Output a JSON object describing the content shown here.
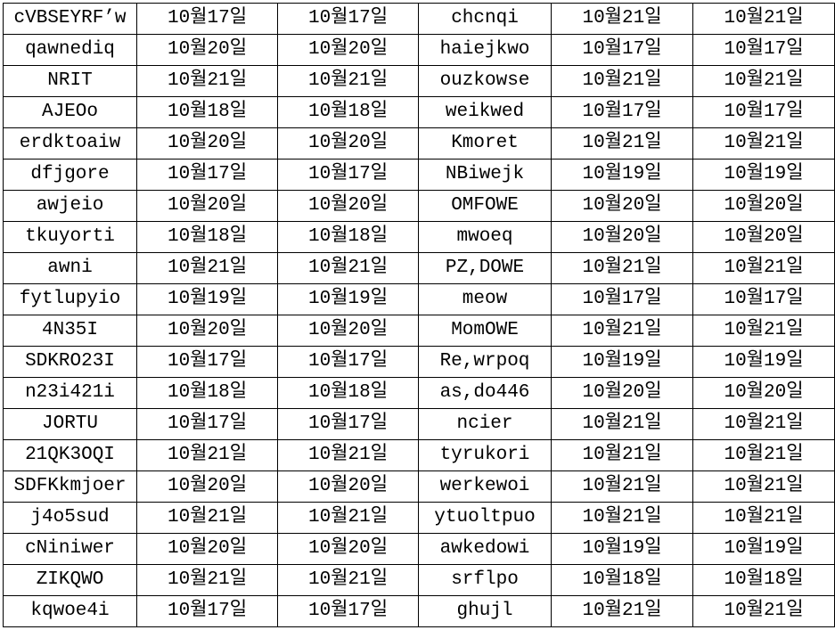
{
  "rows": [
    [
      "cVBSEYRF’w",
      "10월17일",
      "10월17일",
      "chcnqi",
      "10월21일",
      "10월21일"
    ],
    [
      "qawnediq",
      "10월20일",
      "10월20일",
      "haiejkwo",
      "10월17일",
      "10월17일"
    ],
    [
      "NRIT",
      "10월21일",
      "10월21일",
      "ouzkowse",
      "10월21일",
      "10월21일"
    ],
    [
      "AJEOo",
      "10월18일",
      "10월18일",
      "weikwed",
      "10월17일",
      "10월17일"
    ],
    [
      "erdktoaiw",
      "10월20일",
      "10월20일",
      "Kmoret",
      "10월21일",
      "10월21일"
    ],
    [
      "dfjgore",
      "10월17일",
      "10월17일",
      "NBiwejk",
      "10월19일",
      "10월19일"
    ],
    [
      "awjeio",
      "10월20일",
      "10월20일",
      "OMFOWE",
      "10월20일",
      "10월20일"
    ],
    [
      "tkuyorti",
      "10월18일",
      "10월18일",
      "mwoeq",
      "10월20일",
      "10월20일"
    ],
    [
      "awni",
      "10월21일",
      "10월21일",
      "PZ,DOWE",
      "10월21일",
      "10월21일"
    ],
    [
      "fytlupyio",
      "10월19일",
      "10월19일",
      "meow",
      "10월17일",
      "10월17일"
    ],
    [
      "4N35I",
      "10월20일",
      "10월20일",
      "MomOWE",
      "10월21일",
      "10월21일"
    ],
    [
      "SDKRO23I",
      "10월17일",
      "10월17일",
      "Re,wrpoq",
      "10월19일",
      "10월19일"
    ],
    [
      "n23i421i",
      "10월18일",
      "10월18일",
      "as,do446",
      "10월20일",
      "10월20일"
    ],
    [
      "JORTU",
      "10월17일",
      "10월17일",
      "ncier",
      "10월21일",
      "10월21일"
    ],
    [
      "21QK3OQI",
      "10월21일",
      "10월21일",
      "tyrukori",
      "10월21일",
      "10월21일"
    ],
    [
      "SDFKkmjoer",
      "10월20일",
      "10월20일",
      "werkewoi",
      "10월21일",
      "10월21일"
    ],
    [
      "j4o5sud",
      "10월21일",
      "10월21일",
      "ytuoltpuo",
      "10월21일",
      "10월21일"
    ],
    [
      "cNiniwer",
      "10월20일",
      "10월20일",
      "awkedowi",
      "10월19일",
      "10월19일"
    ],
    [
      "ZIKQWO",
      "10월21일",
      "10월21일",
      "srflpo",
      "10월18일",
      "10월18일"
    ],
    [
      "kqwoe4i",
      "10월17일",
      "10월17일",
      "ghujl",
      "10월21일",
      "10월21일"
    ]
  ]
}
